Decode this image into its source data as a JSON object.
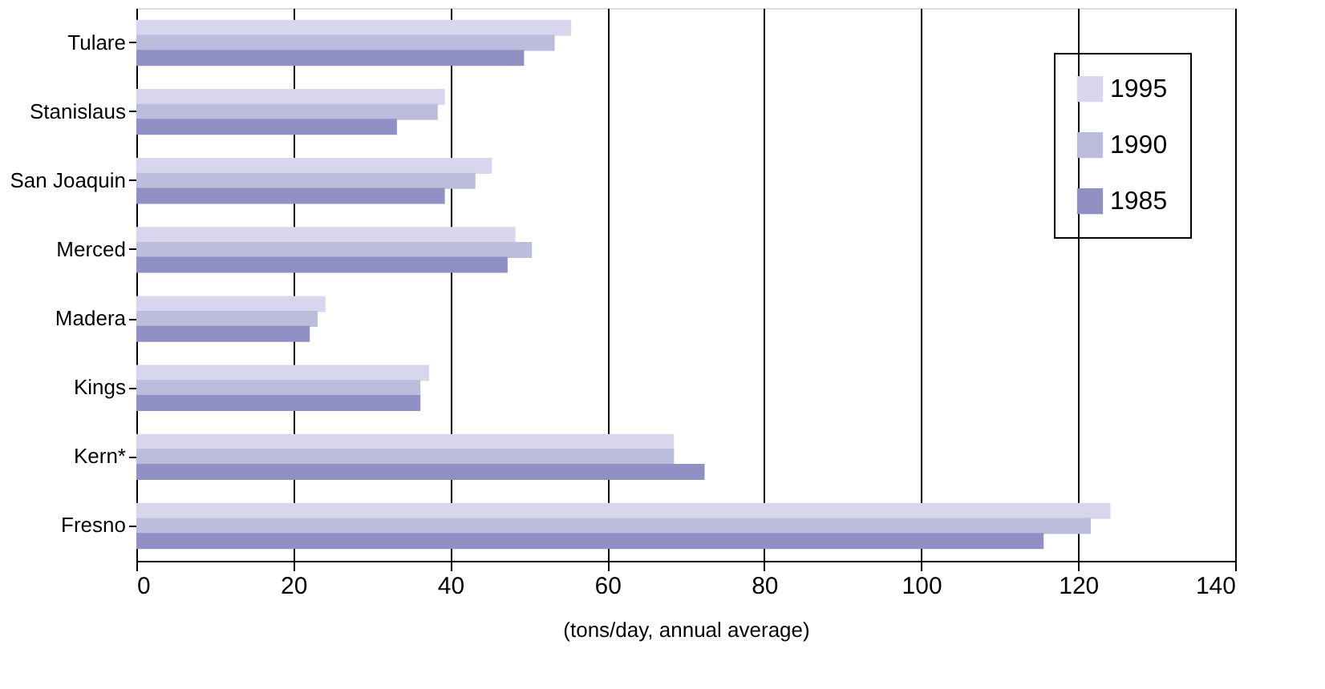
{
  "chart_data": {
    "type": "bar",
    "orientation": "horizontal",
    "xlabel": "(tons/day, annual average)",
    "categories": [
      "Tulare",
      "Stanislaus",
      "San Joaquin",
      "Merced",
      "Madera",
      "Kings",
      "Kern*",
      "Fresno"
    ],
    "series": [
      {
        "name": "1995",
        "color": "#d8d6ec",
        "values": [
          55.4,
          39.3,
          45.3,
          48.3,
          24.1,
          37.3,
          68.5,
          124.1
        ]
      },
      {
        "name": "1990",
        "color": "#bcbcdc",
        "values": [
          53.3,
          38.4,
          43.2,
          50.4,
          23.1,
          36.2,
          68.5,
          121.6
        ]
      },
      {
        "name": "1985",
        "color": "#9090c4",
        "values": [
          49.4,
          33.2,
          39.3,
          47.3,
          22.1,
          36.2,
          72.4,
          115.6
        ]
      }
    ],
    "xlim": [
      0,
      140
    ],
    "xticks": [
      0,
      20,
      40,
      60,
      80,
      100,
      120,
      140
    ],
    "grid": "x",
    "legend": "top right"
  }
}
